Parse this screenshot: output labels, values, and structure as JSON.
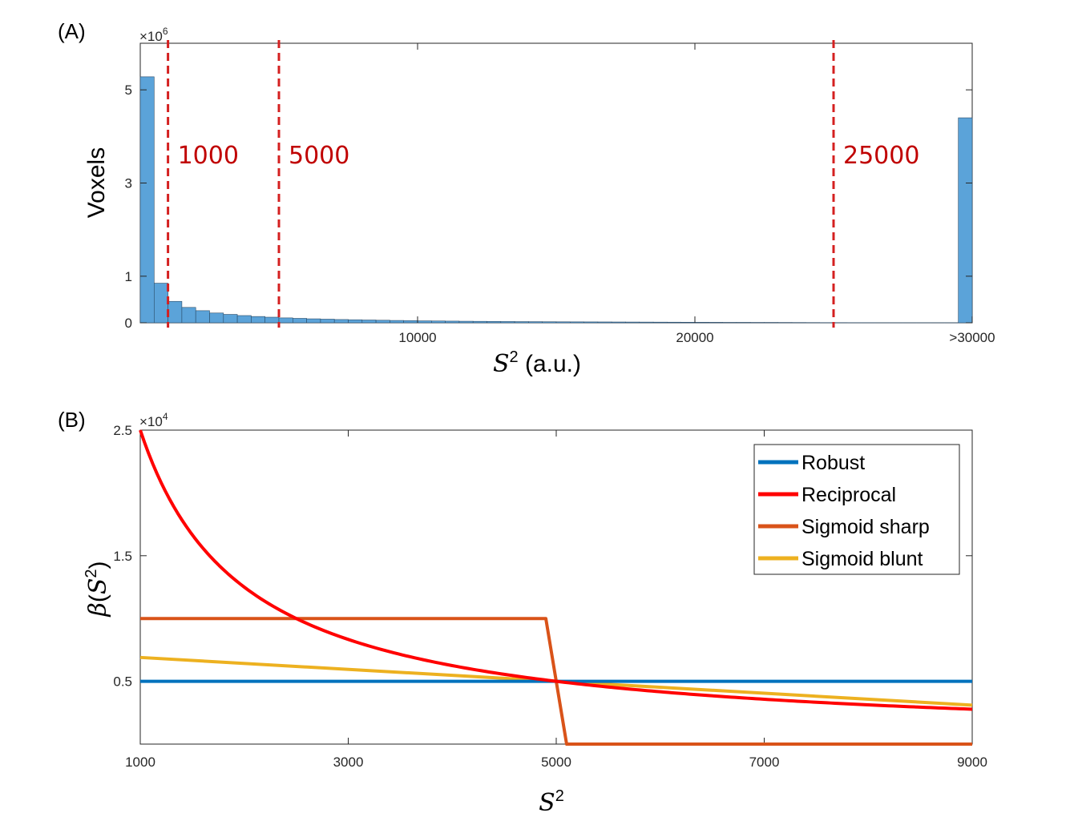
{
  "chart_data": [
    {
      "panel": "(A)",
      "type": "bar",
      "xlabel": "S2 (a.u.)",
      "xlabel_symbol": "S",
      "xlabel_sup": "2",
      "xlabel_suffix": " (a.u.)",
      "ylabel": "Voxels",
      "y_exponent_label": "×10",
      "y_exponent_sup": "6",
      "xlim": [
        0,
        30000
      ],
      "ylim": [
        0,
        6
      ],
      "xticks": [
        {
          "value": 10000,
          "label": "10000"
        },
        {
          "value": 20000,
          "label": "20000"
        },
        {
          "value": 30000,
          "label": ">30000"
        }
      ],
      "yticks": [
        {
          "value": 0,
          "label": "0"
        },
        {
          "value": 1,
          "label": "1"
        },
        {
          "value": 3,
          "label": "3"
        },
        {
          "value": 5,
          "label": "5"
        }
      ],
      "bin_width": 500,
      "values": [
        5.28,
        0.85,
        0.46,
        0.33,
        0.26,
        0.21,
        0.18,
        0.155,
        0.135,
        0.12,
        0.105,
        0.095,
        0.085,
        0.078,
        0.07,
        0.065,
        0.06,
        0.055,
        0.05,
        0.046,
        0.042,
        0.039,
        0.036,
        0.033,
        0.031,
        0.029,
        0.027,
        0.025,
        0.024,
        0.022,
        0.021,
        0.02,
        0.019,
        0.018,
        0.017,
        0.016,
        0.015,
        0.014,
        0.013,
        0.012,
        0.011,
        0.01,
        0.009,
        0.009,
        0.008,
        0.008,
        0.007,
        0.006,
        0.005,
        0.004,
        0.004,
        0.003,
        0.003,
        0.002,
        0.002,
        0.002,
        0.002,
        0.002,
        0.002,
        4.4
      ],
      "thresholds": [
        {
          "value": 1000,
          "label": "1000"
        },
        {
          "value": 5000,
          "label": "5000"
        },
        {
          "value": 25000,
          "label": "25000"
        }
      ],
      "colors": {
        "bar": "#5ba3d9",
        "bar_edge": "#2a4a66",
        "threshold": "#d42020",
        "threshold_text": "#c00000"
      }
    },
    {
      "panel": "(B)",
      "type": "line",
      "xlabel": "S2",
      "xlabel_symbol": "S",
      "xlabel_sup": "2",
      "ylabel": "β(S2)",
      "ylabel_parts": {
        "beta": "β",
        "open": "(",
        "symbol": "S",
        "sup": "2",
        "close": ")"
      },
      "y_exponent_label": "×10",
      "y_exponent_sup": "4",
      "xlim": [
        1000,
        9000
      ],
      "ylim": [
        0,
        2.5
      ],
      "xticks": [
        {
          "value": 1000,
          "label": "1000"
        },
        {
          "value": 3000,
          "label": "3000"
        },
        {
          "value": 5000,
          "label": "5000"
        },
        {
          "value": 7000,
          "label": "7000"
        },
        {
          "value": 9000,
          "label": "9000"
        }
      ],
      "yticks": [
        {
          "value": 0.5,
          "label": "0.5"
        },
        {
          "value": 1.5,
          "label": "1.5"
        },
        {
          "value": 2.5,
          "label": "2.5"
        }
      ],
      "legend_position": "top-right",
      "series": [
        {
          "name": "Robust",
          "color": "#0072bd",
          "x": [
            1000,
            9000
          ],
          "y": [
            0.5,
            0.5
          ]
        },
        {
          "name": "Reciprocal",
          "color": "#ff0000",
          "function": "2.5 * 1000 / x"
        },
        {
          "name": "Sigmoid sharp",
          "color": "#d95319",
          "x": [
            1000,
            4900,
            5100,
            9000
          ],
          "y": [
            1.0,
            1.0,
            0.0,
            0.0
          ]
        },
        {
          "name": "Sigmoid blunt",
          "color": "#edb120",
          "x": [
            1000,
            5000,
            9000
          ],
          "y": [
            0.69,
            0.5,
            0.31
          ]
        }
      ]
    }
  ]
}
